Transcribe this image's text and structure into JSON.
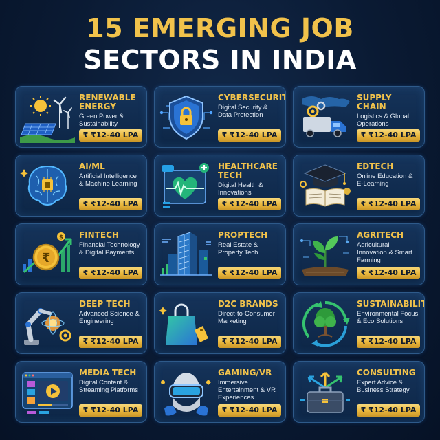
{
  "title": {
    "line1": "15 EMERGING JOB",
    "line2": "SECTORS IN INDIA"
  },
  "cards": [
    {
      "name": "RENEWABLE ENERGY",
      "desc": "Green Power & Sustainability",
      "salary": "₹ ₹12-40 LPA",
      "icon": "solar-wind-icon"
    },
    {
      "name": "CYBERSECURITY",
      "desc": "Digital Security & Data Protection",
      "salary": "₹ ₹12-40 LPA",
      "icon": "shield-lock-icon"
    },
    {
      "name": "SUPPLY CHAIN",
      "desc": "Logistics & Global Operations",
      "salary": "₹ ₹12-40 LPA",
      "icon": "truck-icon"
    },
    {
      "name": "AI/ML",
      "desc": "Artificial Intelligence & Machine Learning",
      "salary": "₹ ₹12-40 LPA",
      "icon": "brain-chip-icon"
    },
    {
      "name": "HEALTHCARE TECH",
      "desc": "Digital Health & Innovations",
      "salary": "₹ ₹12-40 LPA",
      "icon": "heart-monitor-icon"
    },
    {
      "name": "EDTECH",
      "desc": "Online Education & E-Learning",
      "salary": "₹ ₹12-40 LPA",
      "icon": "graduation-cap-icon"
    },
    {
      "name": "FINTECH",
      "desc": "Financial Technology & Digital Payments",
      "salary": "₹ ₹12-40 LPA",
      "icon": "rupee-coin-icon"
    },
    {
      "name": "PROPTECH",
      "desc": "Real Estate & Property Tech",
      "salary": "₹ ₹12-40 LPA",
      "icon": "building-icon"
    },
    {
      "name": "AGRITECH",
      "desc": "Agricultural Innovation & Smart Farming",
      "salary": "₹ ₹12-40 LPA",
      "icon": "sprout-icon"
    },
    {
      "name": "DEEP TECH",
      "desc": "Advanced Science & Engineering",
      "salary": "₹ ₹12-40 LPA",
      "icon": "robot-arm-icon"
    },
    {
      "name": "D2C BRANDS",
      "desc": "Direct-to-Consumer Marketing",
      "salary": "₹ ₹12-40 LPA",
      "icon": "shopping-bag-icon"
    },
    {
      "name": "SUSTAINABILITY",
      "desc": "Environmental Focus & Eco Solutions",
      "salary": "₹ ₹12-40 LPA",
      "icon": "tree-recycle-icon"
    },
    {
      "name": "MEDIA TECH",
      "desc": "Digital Content & Streaming Platforms",
      "salary": "₹ ₹12-40 LPA",
      "icon": "video-player-icon"
    },
    {
      "name": "GAMING/VR",
      "desc": "Immersive Entertainment & VR Experiences",
      "salary": "₹ ₹12-40 LPA",
      "icon": "vr-headset-icon"
    },
    {
      "name": "CONSULTING",
      "desc": "Expert Advice & Business Strategy",
      "salary": "₹ ₹12-40 LPA",
      "icon": "briefcase-icon"
    }
  ],
  "colors": {
    "gold": "#f1c24b",
    "background": "#0a1a33",
    "card_border": "#2e5a8a"
  }
}
